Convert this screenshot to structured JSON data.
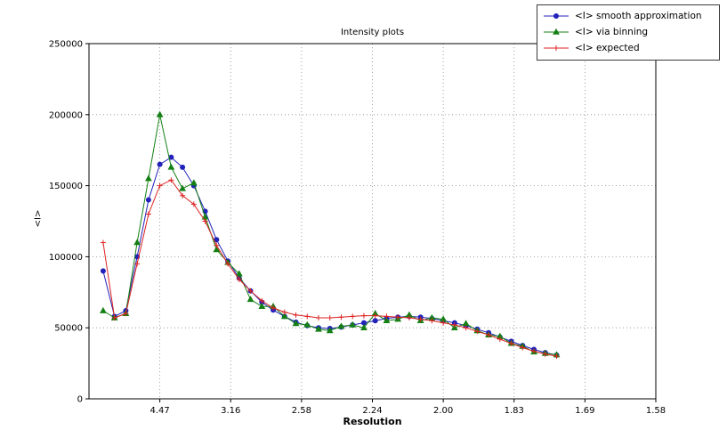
{
  "chart_data": {
    "type": "line",
    "title": "Intensity plots",
    "xlabel": "Resolution",
    "ylabel": "<I>",
    "grid": true,
    "grid_style": "dotted",
    "legend_position": "upper right, outside axes",
    "axis_note": "x tick labels are resolution in Angstrom; tick positions are linear in 1/d^2",
    "xlim_inv_d2": [
      0,
      0.4
    ],
    "ylim": [
      0,
      250000
    ],
    "xticks": [
      {
        "label": "4.47",
        "inv_d2": 0.05
      },
      {
        "label": "3.16",
        "inv_d2": 0.1
      },
      {
        "label": "2.58",
        "inv_d2": 0.15
      },
      {
        "label": "2.24",
        "inv_d2": 0.2
      },
      {
        "label": "2.00",
        "inv_d2": 0.25
      },
      {
        "label": "1.83",
        "inv_d2": 0.3
      },
      {
        "label": "1.69",
        "inv_d2": 0.35
      },
      {
        "label": "1.58",
        "inv_d2": 0.4
      }
    ],
    "yticks": [
      0,
      50000,
      100000,
      150000,
      200000,
      250000
    ],
    "x_inv_d2": [
      0.01,
      0.018,
      0.026,
      0.034,
      0.042,
      0.05,
      0.058,
      0.066,
      0.074,
      0.082,
      0.09,
      0.098,
      0.106,
      0.114,
      0.122,
      0.13,
      0.138,
      0.146,
      0.154,
      0.162,
      0.17,
      0.178,
      0.186,
      0.194,
      0.202,
      0.21,
      0.218,
      0.226,
      0.234,
      0.242,
      0.25,
      0.258,
      0.266,
      0.274,
      0.282,
      0.29,
      0.298,
      0.306,
      0.314,
      0.322,
      0.33
    ],
    "series": [
      {
        "name": "<I> smooth approximation",
        "color": "#2222bb",
        "marker": "circle",
        "values": [
          90000,
          58000,
          62000,
          100000,
          140000,
          165000,
          170000,
          163000,
          150000,
          132000,
          112000,
          97000,
          85000,
          76000,
          68000,
          62500,
          58000,
          54000,
          51500,
          50000,
          49500,
          50500,
          52000,
          53500,
          55000,
          56500,
          57500,
          58000,
          57500,
          56500,
          55000,
          53500,
          51500,
          49000,
          46500,
          43500,
          40500,
          37500,
          34800,
          32500,
          30800
        ]
      },
      {
        "name": "<I> via binning",
        "color": "#148014",
        "marker": "triangle",
        "values": [
          62000,
          57000,
          60000,
          110000,
          155000,
          200000,
          163000,
          148000,
          152000,
          128000,
          105000,
          96000,
          88000,
          70000,
          65000,
          65000,
          58000,
          53000,
          52000,
          49000,
          48000,
          51000,
          52000,
          50000,
          60000,
          55000,
          56000,
          59000,
          55000,
          57000,
          56000,
          50000,
          53000,
          48000,
          45000,
          44000,
          39000,
          37000,
          33000,
          32000,
          31000
        ]
      },
      {
        "name": "<I> expected",
        "color": "#dd2222",
        "marker": "plus",
        "values": [
          110000,
          57000,
          60000,
          95000,
          130000,
          150000,
          154000,
          143000,
          137000,
          125000,
          108000,
          95000,
          84000,
          76000,
          69000,
          64000,
          61000,
          59000,
          58000,
          57000,
          57000,
          57500,
          58000,
          58500,
          58500,
          58000,
          57500,
          57000,
          56000,
          55000,
          53500,
          52000,
          50000,
          47500,
          45000,
          42000,
          39000,
          36000,
          33500,
          31500,
          30000
        ]
      }
    ]
  }
}
